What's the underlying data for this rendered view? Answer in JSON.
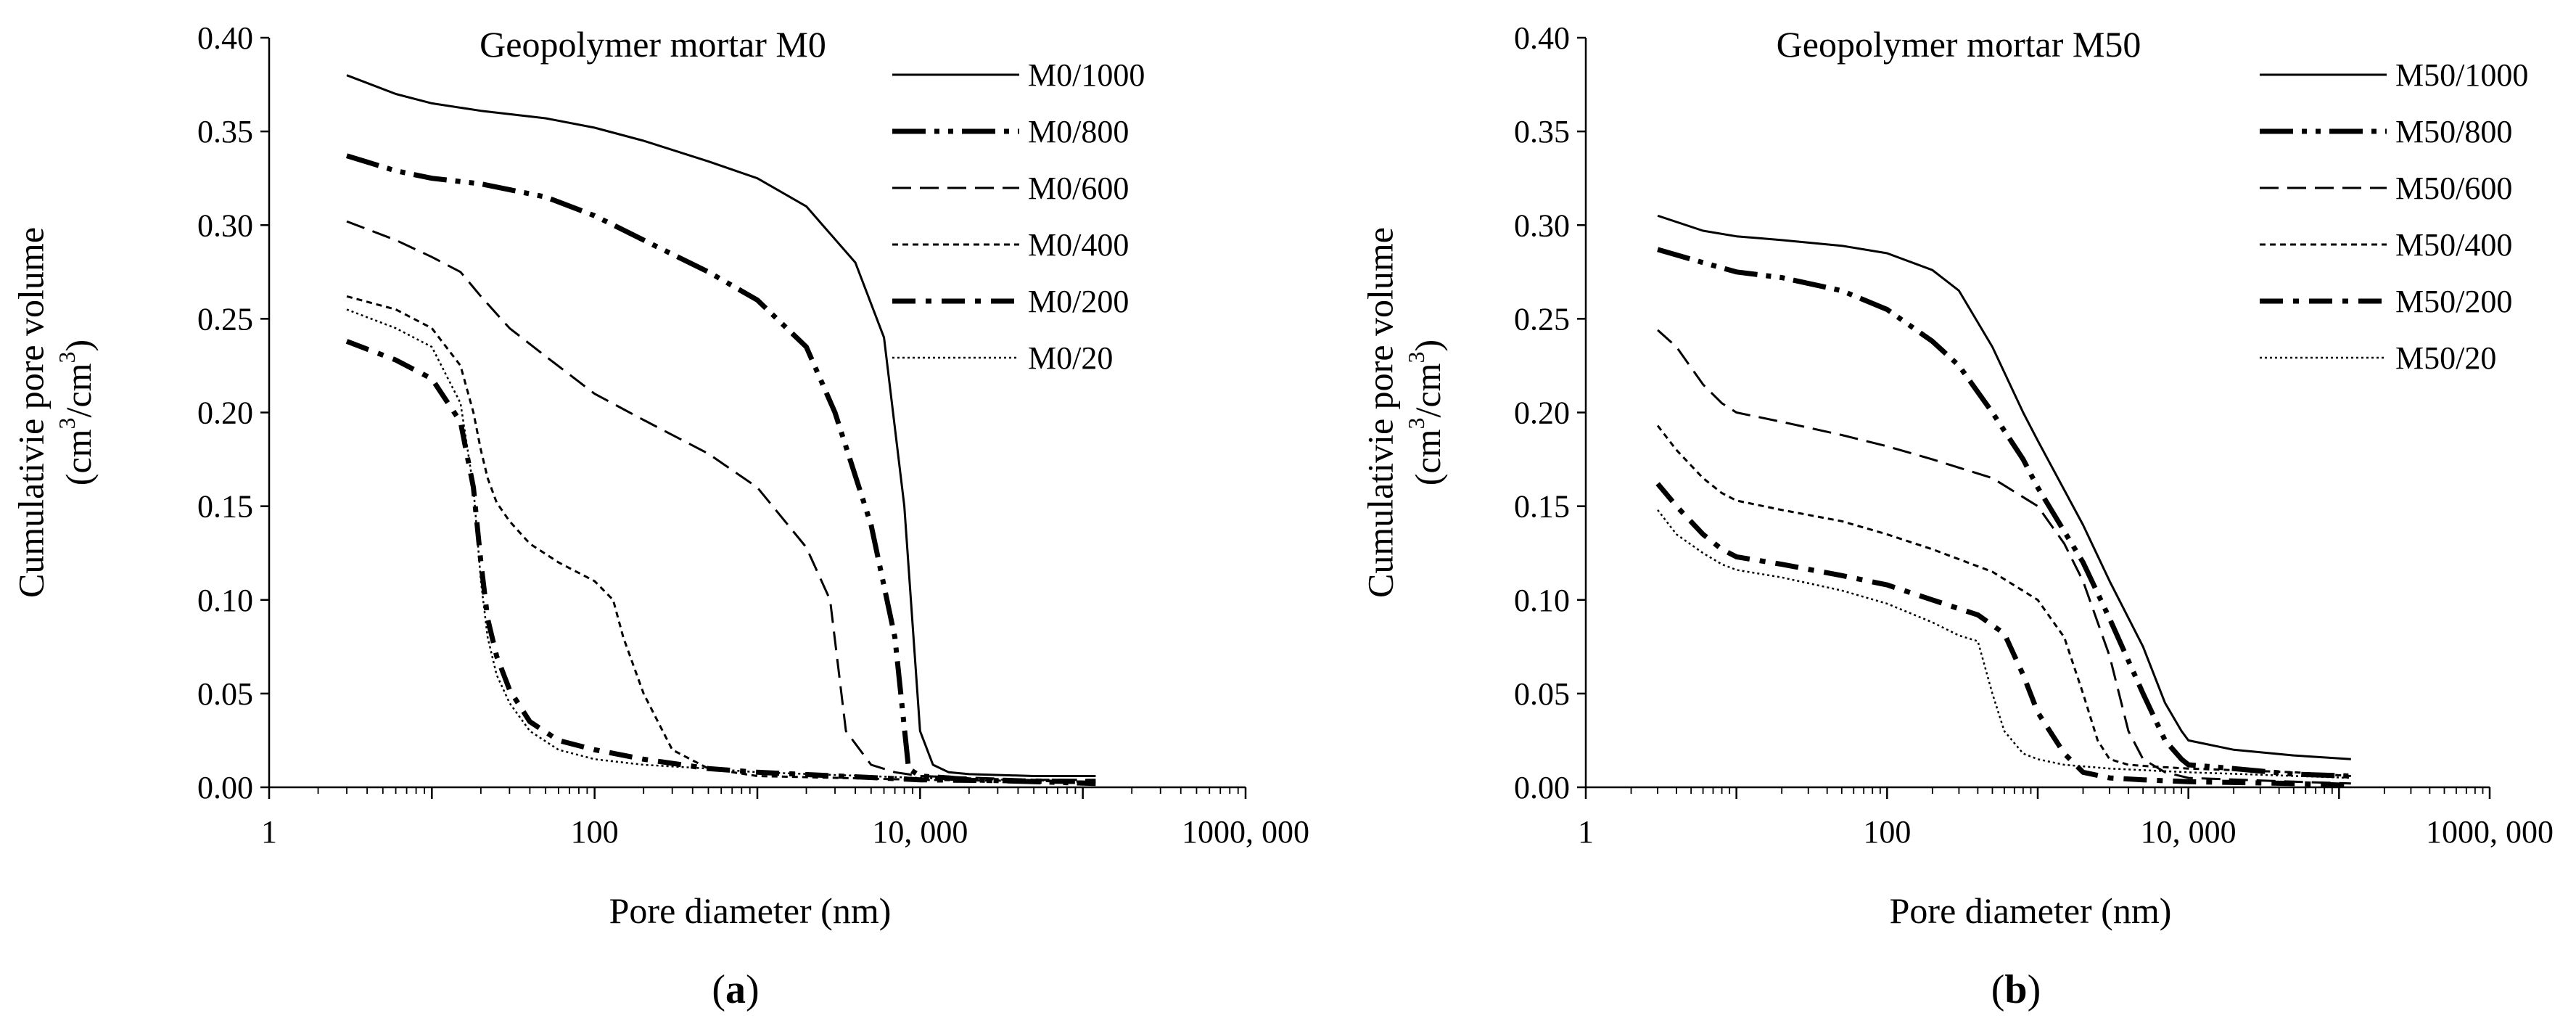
{
  "figure": {
    "colors": {
      "ink": "#000000",
      "background": "#ffffff"
    }
  },
  "chart_data": [
    {
      "id": "a",
      "type": "line",
      "x_scale": "log",
      "title": "Geopolymer mortar M0",
      "panel_label": "a",
      "xlabel": "Pore diameter (nm)",
      "ylabel_line1": "Cumulativie pore volume",
      "ylabel_unit": {
        "open": "(cm",
        "sup1": "3",
        "slash": "/cm",
        "sup2": "3",
        "close": ")"
      },
      "xlim": [
        1,
        1000000
      ],
      "ylim": [
        0,
        0.4
      ],
      "x_ticks": [
        {
          "value": 1,
          "label": "1"
        },
        {
          "value": 100,
          "label": "100"
        },
        {
          "value": 10000,
          "label": "10, 000"
        },
        {
          "value": 1000000,
          "label": "1000, 000"
        }
      ],
      "y_ticks": [
        {
          "value": 0,
          "label": "0.00"
        },
        {
          "value": 0.05,
          "label": "0.05"
        },
        {
          "value": 0.1,
          "label": "0.10"
        },
        {
          "value": 0.15,
          "label": "0.15"
        },
        {
          "value": 0.2,
          "label": "0.20"
        },
        {
          "value": 0.25,
          "label": "0.25"
        },
        {
          "value": 0.3,
          "label": "0.30"
        },
        {
          "value": 0.35,
          "label": "0.35"
        },
        {
          "value": 0.4,
          "label": "0.40"
        }
      ],
      "legend_position": "top-right",
      "series": [
        {
          "name": "M0/1000",
          "style": "solid-thin",
          "x": [
            3,
            6,
            10,
            20,
            50,
            100,
            200,
            500,
            1000,
            2000,
            4000,
            6000,
            8000,
            10000,
            12000,
            15000,
            20000,
            50000,
            100000,
            120000
          ],
          "y": [
            0.38,
            0.37,
            0.365,
            0.361,
            0.357,
            0.352,
            0.345,
            0.334,
            0.325,
            0.31,
            0.28,
            0.24,
            0.15,
            0.03,
            0.012,
            0.008,
            0.007,
            0.006,
            0.006,
            0.006
          ]
        },
        {
          "name": "M0/800",
          "style": "dash-dot-dot-thick",
          "x": [
            3,
            6,
            10,
            20,
            50,
            100,
            200,
            500,
            1000,
            2000,
            3000,
            5000,
            7000,
            8500,
            10000,
            15000,
            20000,
            50000,
            120000
          ],
          "y": [
            0.337,
            0.329,
            0.325,
            0.322,
            0.315,
            0.305,
            0.292,
            0.275,
            0.26,
            0.235,
            0.2,
            0.14,
            0.08,
            0.01,
            0.006,
            0.005,
            0.004,
            0.003,
            0.002
          ]
        },
        {
          "name": "M0/600",
          "style": "long-dash",
          "x": [
            3,
            6,
            10,
            15,
            20,
            30,
            50,
            100,
            200,
            500,
            1000,
            2000,
            2800,
            3500,
            5000,
            7000,
            10000,
            50000,
            120000
          ],
          "y": [
            0.302,
            0.292,
            0.283,
            0.275,
            0.262,
            0.245,
            0.23,
            0.21,
            0.196,
            0.178,
            0.16,
            0.128,
            0.1,
            0.03,
            0.012,
            0.008,
            0.006,
            0.004,
            0.004
          ]
        },
        {
          "name": "M0/400",
          "style": "short-dash",
          "x": [
            3,
            6,
            10,
            15,
            18,
            20,
            22,
            25,
            30,
            40,
            60,
            100,
            130,
            150,
            200,
            300,
            500,
            1000,
            10000,
            120000
          ],
          "y": [
            0.262,
            0.255,
            0.245,
            0.225,
            0.2,
            0.18,
            0.165,
            0.152,
            0.142,
            0.13,
            0.12,
            0.11,
            0.1,
            0.08,
            0.05,
            0.02,
            0.01,
            0.006,
            0.004,
            0.003
          ]
        },
        {
          "name": "M0/200",
          "style": "dash-dot-thick",
          "x": [
            3,
            6,
            10,
            15,
            18,
            20,
            22,
            25,
            30,
            40,
            60,
            100,
            200,
            500,
            1000,
            10000,
            120000
          ],
          "y": [
            0.238,
            0.228,
            0.218,
            0.195,
            0.16,
            0.12,
            0.09,
            0.07,
            0.052,
            0.035,
            0.025,
            0.02,
            0.015,
            0.01,
            0.008,
            0.004,
            0.003
          ]
        },
        {
          "name": "M0/20",
          "style": "dotted",
          "x": [
            3,
            6,
            10,
            15,
            18,
            20,
            22,
            25,
            30,
            40,
            60,
            100,
            200,
            500,
            1000,
            10000,
            120000
          ],
          "y": [
            0.255,
            0.245,
            0.235,
            0.205,
            0.16,
            0.11,
            0.08,
            0.06,
            0.045,
            0.03,
            0.02,
            0.015,
            0.012,
            0.01,
            0.008,
            0.005,
            0.003
          ]
        }
      ]
    },
    {
      "id": "b",
      "type": "line",
      "x_scale": "log",
      "title": "Geopolymer mortar M50",
      "panel_label": "b",
      "xlabel": "Pore diameter (nm)",
      "ylabel_line1": "Cumulativie pore volume",
      "ylabel_unit": {
        "open": "(cm",
        "sup1": "3",
        "slash": "/cm",
        "sup2": "3",
        "close": ")"
      },
      "xlim": [
        1,
        1000000
      ],
      "ylim": [
        0,
        0.4
      ],
      "x_ticks": [
        {
          "value": 1,
          "label": "1"
        },
        {
          "value": 100,
          "label": "100"
        },
        {
          "value": 10000,
          "label": "10, 000"
        },
        {
          "value": 1000000,
          "label": "1000, 000"
        }
      ],
      "y_ticks": [
        {
          "value": 0,
          "label": "0.00"
        },
        {
          "value": 0.05,
          "label": "0.05"
        },
        {
          "value": 0.1,
          "label": "0.10"
        },
        {
          "value": 0.15,
          "label": "0.15"
        },
        {
          "value": 0.2,
          "label": "0.20"
        },
        {
          "value": 0.25,
          "label": "0.25"
        },
        {
          "value": 0.3,
          "label": "0.30"
        },
        {
          "value": 0.35,
          "label": "0.35"
        },
        {
          "value": 0.4,
          "label": "0.40"
        }
      ],
      "legend_position": "top-right",
      "series": [
        {
          "name": "M50/1000",
          "style": "solid-thin",
          "x": [
            3,
            6,
            10,
            20,
            50,
            100,
            200,
            300,
            500,
            800,
            1000,
            2000,
            3000,
            5000,
            7000,
            9000,
            10000,
            20000,
            50000,
            120000
          ],
          "y": [
            0.305,
            0.297,
            0.294,
            0.292,
            0.289,
            0.285,
            0.276,
            0.265,
            0.235,
            0.2,
            0.185,
            0.14,
            0.11,
            0.075,
            0.045,
            0.03,
            0.025,
            0.02,
            0.017,
            0.015
          ]
        },
        {
          "name": "M50/800",
          "style": "dash-dot-dot-thick",
          "x": [
            3,
            6,
            10,
            20,
            50,
            100,
            200,
            300,
            500,
            800,
            1000,
            2000,
            3000,
            5000,
            7000,
            9000,
            10000,
            20000,
            50000,
            120000
          ],
          "y": [
            0.287,
            0.28,
            0.275,
            0.272,
            0.265,
            0.255,
            0.238,
            0.225,
            0.2,
            0.175,
            0.16,
            0.12,
            0.09,
            0.05,
            0.025,
            0.015,
            0.012,
            0.01,
            0.007,
            0.006
          ]
        },
        {
          "name": "M50/600",
          "style": "long-dash",
          "x": [
            3,
            4,
            6,
            8,
            10,
            20,
            50,
            100,
            200,
            500,
            1000,
            1500,
            2000,
            3000,
            4000,
            5000,
            7000,
            10000,
            50000,
            120000
          ],
          "y": [
            0.244,
            0.235,
            0.215,
            0.205,
            0.2,
            0.195,
            0.188,
            0.182,
            0.175,
            0.165,
            0.15,
            0.13,
            0.11,
            0.07,
            0.03,
            0.015,
            0.008,
            0.005,
            0.003,
            0.002
          ]
        },
        {
          "name": "M50/400",
          "style": "short-dash",
          "x": [
            3,
            4,
            6,
            8,
            10,
            20,
            50,
            100,
            200,
            500,
            1000,
            1500,
            2000,
            2500,
            3000,
            4000,
            6000,
            10000,
            50000,
            120000
          ],
          "y": [
            0.193,
            0.18,
            0.165,
            0.157,
            0.153,
            0.148,
            0.142,
            0.135,
            0.127,
            0.115,
            0.1,
            0.08,
            0.05,
            0.025,
            0.015,
            0.012,
            0.011,
            0.01,
            0.008,
            0.006
          ]
        },
        {
          "name": "M50/200",
          "style": "dash-dot-thick",
          "x": [
            3,
            4,
            6,
            8,
            10,
            20,
            50,
            100,
            200,
            400,
            600,
            800,
            1000,
            1500,
            2000,
            3000,
            5000,
            10000,
            50000,
            120000
          ],
          "y": [
            0.162,
            0.15,
            0.135,
            0.127,
            0.123,
            0.119,
            0.113,
            0.108,
            0.1,
            0.092,
            0.082,
            0.06,
            0.04,
            0.018,
            0.008,
            0.005,
            0.004,
            0.003,
            0.002,
            0.001
          ]
        },
        {
          "name": "M50/20",
          "style": "dotted",
          "x": [
            3,
            4,
            6,
            8,
            10,
            20,
            50,
            100,
            200,
            300,
            400,
            500,
            600,
            800,
            1000,
            1500,
            3000,
            10000,
            120000
          ],
          "y": [
            0.148,
            0.135,
            0.125,
            0.119,
            0.116,
            0.112,
            0.105,
            0.098,
            0.088,
            0.081,
            0.078,
            0.05,
            0.03,
            0.018,
            0.015,
            0.012,
            0.01,
            0.008,
            0.005
          ]
        }
      ]
    }
  ]
}
